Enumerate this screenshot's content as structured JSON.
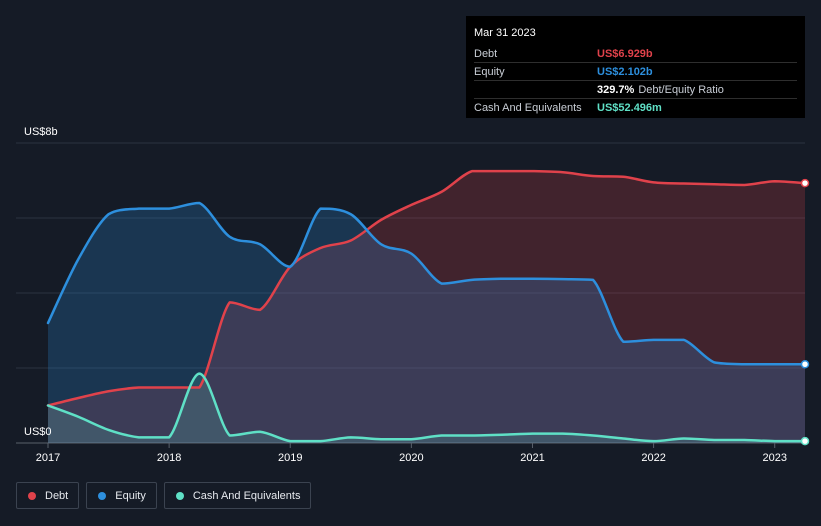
{
  "tooltip": {
    "date": "Mar 31 2023",
    "debt_label": "Debt",
    "debt_value": "US$6.929b",
    "equity_label": "Equity",
    "equity_value": "US$2.102b",
    "ratio_value": "329.7%",
    "ratio_label": "Debt/Equity Ratio",
    "cash_label": "Cash And Equivalents",
    "cash_value": "US$52.496m"
  },
  "legend": [
    {
      "label": "Debt",
      "color": "#e0424b"
    },
    {
      "label": "Equity",
      "color": "#2d8fdd"
    },
    {
      "label": "Cash And Equivalents",
      "color": "#5fe0c6"
    }
  ],
  "colors": {
    "background": "#151b26",
    "debt": "#e0424b",
    "equity": "#2d8fdd",
    "cash": "#5fe0c6"
  },
  "chart_data": {
    "type": "area",
    "y_top_label": "US$8b",
    "y_bottom_label": "US$0",
    "ylim": [
      0,
      8
    ],
    "xlim": [
      2017.0,
      2023.25
    ],
    "x_ticks": [
      "2017",
      "2018",
      "2019",
      "2020",
      "2021",
      "2022",
      "2023"
    ],
    "grid": true,
    "series": [
      {
        "name": "Debt",
        "x": [
          2017.0,
          2017.25,
          2017.5,
          2017.75,
          2018.0,
          2018.25,
          2018.5,
          2018.75,
          2019.0,
          2019.25,
          2019.5,
          2019.75,
          2020.0,
          2020.25,
          2020.5,
          2020.75,
          2021.0,
          2021.25,
          2021.5,
          2021.75,
          2022.0,
          2022.25,
          2022.5,
          2022.75,
          2023.0,
          2023.25
        ],
        "values": [
          1.0,
          1.2,
          1.38,
          1.48,
          1.48,
          1.48,
          3.75,
          3.55,
          4.7,
          5.2,
          5.4,
          5.95,
          6.35,
          6.7,
          7.25,
          7.25,
          7.25,
          7.22,
          7.12,
          7.1,
          6.95,
          6.92,
          6.9,
          6.88,
          6.98,
          6.93
        ]
      },
      {
        "name": "Equity",
        "x": [
          2017.0,
          2017.25,
          2017.5,
          2017.75,
          2018.0,
          2018.25,
          2018.5,
          2018.75,
          2019.0,
          2019.25,
          2019.5,
          2019.75,
          2020.0,
          2020.25,
          2020.5,
          2020.75,
          2021.0,
          2021.25,
          2021.5,
          2021.75,
          2022.0,
          2022.25,
          2022.5,
          2022.75,
          2023.0,
          2023.25
        ],
        "values": [
          3.2,
          4.9,
          6.1,
          6.25,
          6.25,
          6.4,
          5.5,
          5.3,
          4.7,
          6.25,
          6.1,
          5.3,
          5.05,
          4.25,
          4.35,
          4.38,
          4.38,
          4.37,
          4.35,
          2.7,
          2.75,
          2.75,
          2.15,
          2.1,
          2.1,
          2.1
        ]
      },
      {
        "name": "Cash And Equivalents",
        "x": [
          2017.0,
          2017.25,
          2017.5,
          2017.75,
          2018.0,
          2018.25,
          2018.5,
          2018.75,
          2019.0,
          2019.25,
          2019.5,
          2019.75,
          2020.0,
          2020.25,
          2020.5,
          2020.75,
          2021.0,
          2021.25,
          2021.5,
          2021.75,
          2022.0,
          2022.25,
          2022.5,
          2022.75,
          2023.0,
          2023.25
        ],
        "values": [
          1.0,
          0.7,
          0.35,
          0.15,
          0.15,
          1.85,
          0.2,
          0.3,
          0.05,
          0.05,
          0.15,
          0.1,
          0.1,
          0.2,
          0.2,
          0.22,
          0.25,
          0.25,
          0.2,
          0.12,
          0.05,
          0.12,
          0.08,
          0.08,
          0.05,
          0.05
        ]
      }
    ]
  }
}
